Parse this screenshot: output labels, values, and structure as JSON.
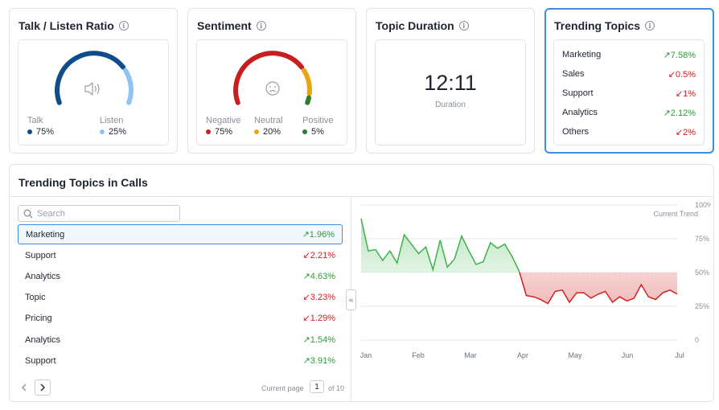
{
  "talk_listen": {
    "title": "Talk / Listen Ratio",
    "talk_label": "Talk",
    "talk_value": "75%",
    "listen_label": "Listen",
    "listen_value": "25%",
    "talk_fraction": 0.75,
    "talk_color": "#0f4c8c",
    "listen_color": "#90c4f2",
    "icon": "speaker-icon"
  },
  "sentiment": {
    "title": "Sentiment",
    "negative_label": "Negative",
    "negative_value": "75%",
    "neutral_label": "Neutral",
    "neutral_value": "20%",
    "positive_label": "Positive",
    "positive_value": "5%",
    "negative_color": "#c81e1e",
    "neutral_color": "#e8a512",
    "positive_color": "#2e7d32",
    "icon": "sad-face-icon"
  },
  "topic_duration": {
    "title": "Topic Duration",
    "time": "12:11",
    "label": "Duration"
  },
  "trending_topics": {
    "title": "Trending Topics",
    "items": [
      {
        "name": "Marketing",
        "dir": "up",
        "value": "7.58%"
      },
      {
        "name": "Sales",
        "dir": "down",
        "value": "0.5%"
      },
      {
        "name": "Support",
        "dir": "down",
        "value": "1%"
      },
      {
        "name": "Analytics",
        "dir": "up",
        "value": "2.12%"
      },
      {
        "name": "Others",
        "dir": "down",
        "value": "2%"
      }
    ]
  },
  "calls": {
    "title": "Trending Topics in Calls",
    "search_placeholder": "Search",
    "column_header": "Current Trend",
    "rows": [
      {
        "name": "Marketing",
        "dir": "up",
        "value": "1.96%"
      },
      {
        "name": "Support",
        "dir": "down",
        "value": "2.21%"
      },
      {
        "name": "Analytics",
        "dir": "up",
        "value": "4.63%"
      },
      {
        "name": "Topic",
        "dir": "down",
        "value": "3.23%"
      },
      {
        "name": "Pricing",
        "dir": "down",
        "value": "1.29%"
      },
      {
        "name": "Analytics",
        "dir": "up",
        "value": "1.54%"
      },
      {
        "name": "Support",
        "dir": "up",
        "value": "3.91%"
      }
    ],
    "pager": {
      "current_label": "Current page",
      "page": "1",
      "of_label": "of 10"
    }
  },
  "chart_data": {
    "type": "area",
    "x_labels": [
      "Jan",
      "Feb",
      "Mar",
      "Apr",
      "May",
      "Jun",
      "Jul"
    ],
    "y_ticks": [
      "100%",
      "75%",
      "50%",
      "25%",
      "0"
    ],
    "ylim": [
      0,
      100
    ],
    "threshold": 50,
    "values": [
      90,
      66,
      67,
      59,
      66,
      57,
      78,
      71,
      64,
      69,
      52,
      74,
      54,
      60,
      77,
      66,
      56,
      58,
      72,
      68,
      71,
      62,
      51,
      33,
      32,
      30,
      27,
      36,
      37,
      28,
      35,
      35,
      31,
      34,
      36,
      28,
      32,
      29,
      31,
      41,
      32,
      30,
      35,
      37,
      34
    ],
    "above_color": "#3bb34a",
    "below_color": "#d32020",
    "grid": true
  }
}
